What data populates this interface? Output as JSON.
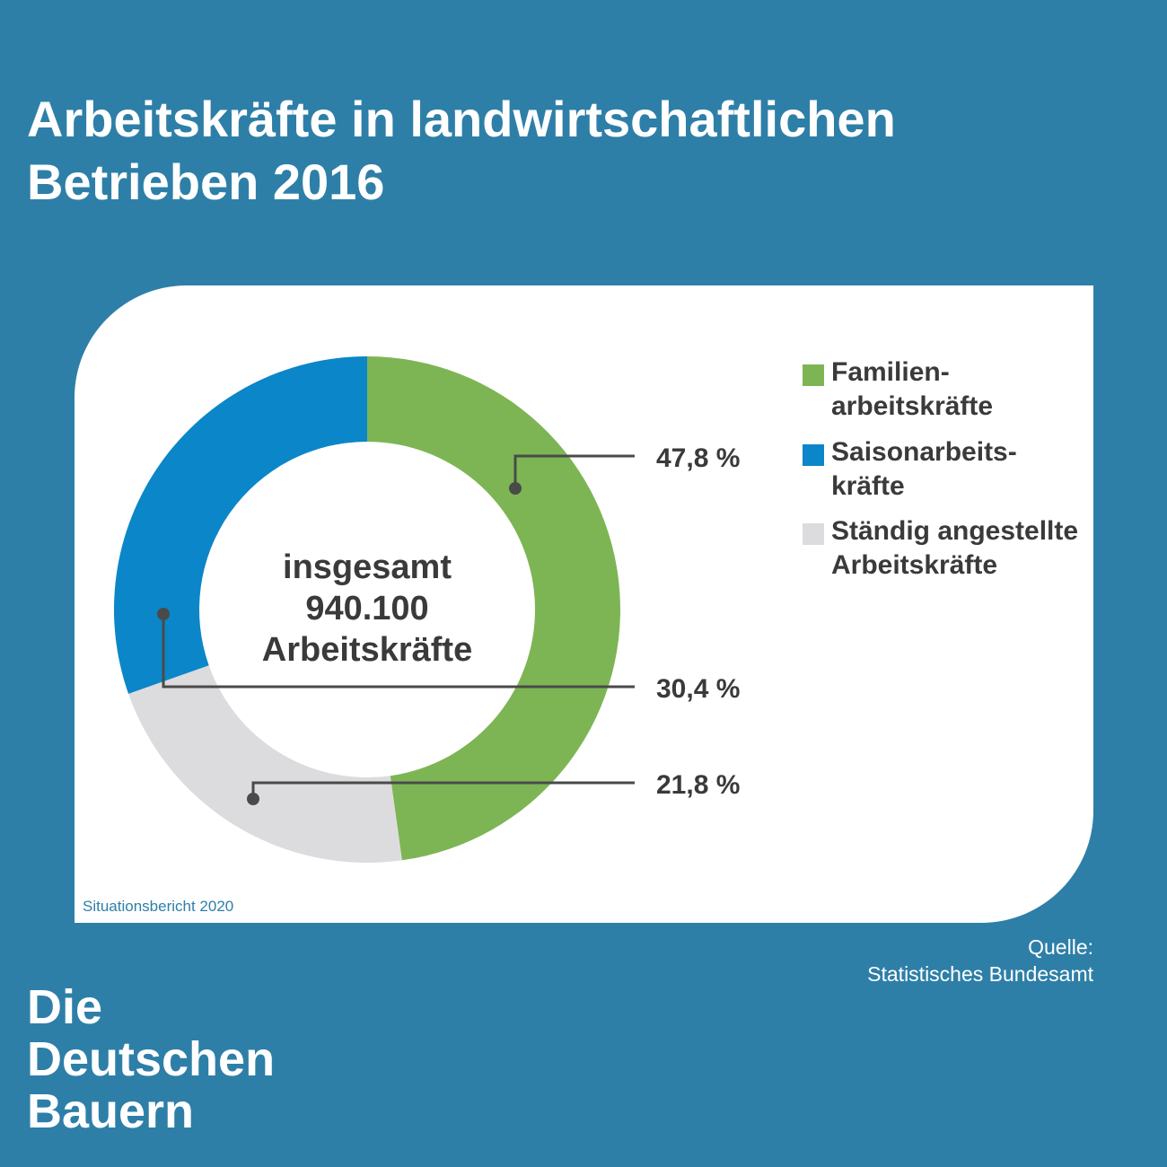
{
  "title": {
    "line1": "Arbeitskräfte in landwirtschaftlichen",
    "line2": "Betrieben 2016"
  },
  "chart_data": {
    "type": "pie",
    "title": "Arbeitskräfte in landwirtschaftlichen Betrieben 2016",
    "center_label": [
      "insgesamt",
      "940.100",
      "Arbeitskräfte"
    ],
    "slices": [
      {
        "name": "Familien-\narbeitskräfte",
        "value": 47.8,
        "label": "47,8 %",
        "color": "#7db554"
      },
      {
        "name": "Ständig angestellte\nArbeitskräfte",
        "value": 21.8,
        "label": "21,8 %",
        "color": "#dcdcde"
      },
      {
        "name": "Saisonarbeits-\nkräfte",
        "value": 30.4,
        "label": "30,4 %",
        "color": "#0b86c8"
      }
    ],
    "legend_order": [
      0,
      2,
      1
    ],
    "legend_position": "right"
  },
  "note": "Situationsbericht 2020",
  "source": {
    "line1": "Quelle:",
    "line2": "Statistisches Bundesamt"
  },
  "brand": {
    "line1": "Die",
    "line2": "Deutschen",
    "line3": "Bauern"
  },
  "colors": {
    "background": "#2e7fa8",
    "card": "#ffffff",
    "text_dark": "#3a3a3a",
    "leader": "#4a4a4a"
  }
}
